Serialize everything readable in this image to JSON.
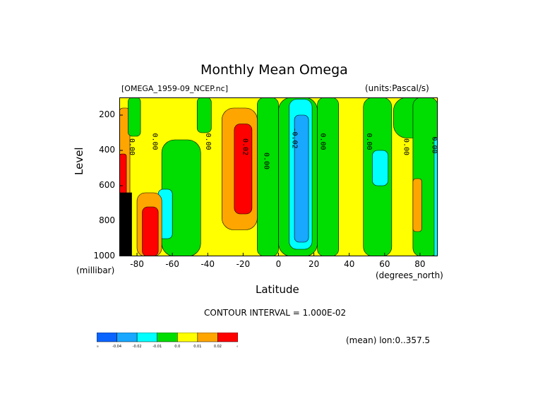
{
  "chart_data": {
    "type": "heatmap",
    "title": "Monthly Mean Omega",
    "dataset_label": "[OMEGA_1959-09_NCEP.nc]",
    "units_label": "(units:Pascal/s)",
    "xlabel": "Latitude",
    "x_units": "(degrees_north)",
    "ylabel": "Level",
    "y_units": "(millibar)",
    "xlim": [
      -90,
      90
    ],
    "ylim": [
      1000,
      100
    ],
    "x_ticks": [
      "-80",
      "-60",
      "-40",
      "-20",
      "0",
      "20",
      "40",
      "60",
      "80"
    ],
    "x_tick_values": [
      -80,
      -60,
      -40,
      -20,
      0,
      20,
      40,
      60,
      80
    ],
    "y_ticks": [
      "200",
      "400",
      "600",
      "800",
      "1000"
    ],
    "y_tick_values": [
      200,
      400,
      600,
      800,
      1000
    ],
    "contour_interval_text": "CONTOUR INTERVAL = 1.000E-02",
    "mean_text": "(mean) lon:0..357.5",
    "contour_labels": [
      {
        "text": "0.00",
        "lat": -84,
        "level": 380
      },
      {
        "text": "0.00",
        "lat": -71,
        "level": 350
      },
      {
        "text": "0.00",
        "lat": -41,
        "level": 350
      },
      {
        "text": "0.02",
        "lat": -20,
        "level": 380
      },
      {
        "text": "0.00",
        "lat": -8,
        "level": 460
      },
      {
        "text": "-0.02",
        "lat": 8,
        "level": 330
      },
      {
        "text": "0.00",
        "lat": 24,
        "level": 350
      },
      {
        "text": "0.00",
        "lat": 50,
        "level": 350
      },
      {
        "text": "0.00",
        "lat": 71,
        "level": 380
      },
      {
        "text": "0.00",
        "lat": 87,
        "level": 370
      }
    ],
    "colorbar": {
      "labels": [
        "-∞",
        "-0.04",
        "-0.02",
        "-0.01",
        "0.0",
        "0.01",
        "0.02",
        "∞"
      ],
      "colors": [
        "#0a64ff",
        "#18a8ff",
        "#00ffff",
        "#00dd00",
        "#ffff00",
        "#ffa500",
        "#ff0000"
      ]
    },
    "regions": [
      {
        "name": "pos-band-left",
        "color": "#ffa500",
        "lat": [
          -90,
          -84
        ],
        "level": [
          160,
          1000
        ]
      },
      {
        "name": "pos-core-left",
        "color": "#ff0000",
        "lat": [
          -90,
          -86
        ],
        "level": [
          420,
          1000
        ]
      },
      {
        "name": "missing-left",
        "color": "#000000",
        "lat": [
          -90,
          -83
        ],
        "level": [
          640,
          1000
        ]
      },
      {
        "name": "green-sw",
        "color": "#00dd00",
        "lat": [
          -85,
          -78
        ],
        "level": [
          100,
          320
        ]
      },
      {
        "name": "green-band-1",
        "color": "#00dd00",
        "lat": [
          -66,
          -44
        ],
        "level": [
          340,
          1000
        ]
      },
      {
        "name": "green-col-2",
        "color": "#00dd00",
        "lat": [
          -46,
          -38
        ],
        "level": [
          100,
          300
        ]
      },
      {
        "name": "cyan-sw",
        "color": "#00ffff",
        "lat": [
          -68,
          -60
        ],
        "level": [
          620,
          900
        ]
      },
      {
        "name": "pos-sw",
        "color": "#ffa500",
        "lat": [
          -80,
          -66
        ],
        "level": [
          640,
          1000
        ]
      },
      {
        "name": "red-sw",
        "color": "#ff0000",
        "lat": [
          -77,
          -68
        ],
        "level": [
          720,
          1000
        ]
      },
      {
        "name": "green-trop-s",
        "color": "#00dd00",
        "lat": [
          -12,
          0
        ],
        "level": [
          100,
          1000
        ]
      },
      {
        "name": "orange-trop-s",
        "color": "#ffa500",
        "lat": [
          -32,
          -12
        ],
        "level": [
          160,
          850
        ]
      },
      {
        "name": "red-trop-s",
        "color": "#ff0000",
        "lat": [
          -25,
          -15
        ],
        "level": [
          250,
          760
        ]
      },
      {
        "name": "green-itcz",
        "color": "#00dd00",
        "lat": [
          0,
          22
        ],
        "level": [
          100,
          1000
        ]
      },
      {
        "name": "cyan-itcz",
        "color": "#00ffff",
        "lat": [
          6,
          19
        ],
        "level": [
          110,
          960
        ]
      },
      {
        "name": "blue-itcz",
        "color": "#18a8ff",
        "lat": [
          9,
          17
        ],
        "level": [
          200,
          920
        ]
      },
      {
        "name": "green-sub-n",
        "color": "#00dd00",
        "lat": [
          22,
          34
        ],
        "level": [
          100,
          1000
        ]
      },
      {
        "name": "green-mid-n",
        "color": "#00dd00",
        "lat": [
          48,
          64
        ],
        "level": [
          100,
          1000
        ]
      },
      {
        "name": "cyan-mid-n",
        "color": "#00ffff",
        "lat": [
          53,
          62
        ],
        "level": [
          400,
          600
        ]
      },
      {
        "name": "green-pol-n",
        "color": "#00dd00",
        "lat": [
          65,
          90
        ],
        "level": [
          100,
          330
        ]
      },
      {
        "name": "green-pol-n2",
        "color": "#00dd00",
        "lat": [
          76,
          90
        ],
        "level": [
          100,
          1000
        ]
      },
      {
        "name": "orange-pol-n",
        "color": "#ffa500",
        "lat": [
          76,
          81
        ],
        "level": [
          560,
          860
        ]
      },
      {
        "name": "cyan-pole-n",
        "color": "#00ffff",
        "lat": [
          88,
          90
        ],
        "level": [
          330,
          1000
        ]
      }
    ]
  }
}
